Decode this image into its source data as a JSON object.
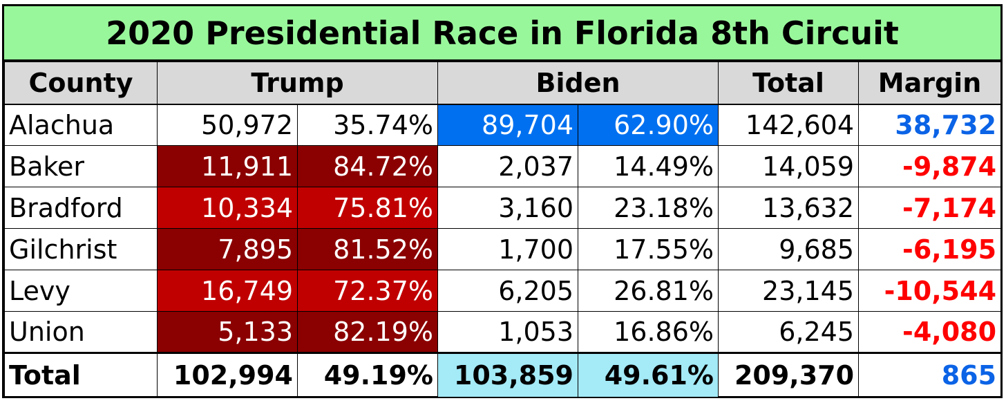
{
  "title": "2020 Presidential Race in Florida 8th Circuit",
  "headers": {
    "county": "County",
    "trump": "Trump",
    "biden": "Biden",
    "total": "Total",
    "margin": "Margin"
  },
  "rows": [
    {
      "county": "Alachua",
      "trump_votes": "50,972",
      "trump_pct": "35.74%",
      "biden_votes": "89,704",
      "biden_pct": "62.90%",
      "total": "142,604",
      "margin": "38,732"
    },
    {
      "county": "Baker",
      "trump_votes": "11,911",
      "trump_pct": "84.72%",
      "biden_votes": "2,037",
      "biden_pct": "14.49%",
      "total": "14,059",
      "margin": "-9,874"
    },
    {
      "county": "Bradford",
      "trump_votes": "10,334",
      "trump_pct": "75.81%",
      "biden_votes": "3,160",
      "biden_pct": "23.18%",
      "total": "13,632",
      "margin": "-7,174"
    },
    {
      "county": "Gilchrist",
      "trump_votes": "7,895",
      "trump_pct": "81.52%",
      "biden_votes": "1,700",
      "biden_pct": "17.55%",
      "total": "9,685",
      "margin": "-6,195"
    },
    {
      "county": "Levy",
      "trump_votes": "16,749",
      "trump_pct": "72.37%",
      "biden_votes": "6,205",
      "biden_pct": "26.81%",
      "total": "23,145",
      "margin": "-10,544"
    },
    {
      "county": "Union",
      "trump_votes": "5,133",
      "trump_pct": "82.19%",
      "biden_votes": "1,053",
      "biden_pct": "16.86%",
      "total": "6,245",
      "margin": "-4,080"
    }
  ],
  "totals": {
    "label": "Total",
    "trump_votes": "102,994",
    "trump_pct": "49.19%",
    "biden_votes": "103,859",
    "biden_pct": "49.61%",
    "total": "209,370",
    "margin": "865"
  },
  "colors": {
    "title_bg": "#99f79b",
    "header_bg": "#d9d9d9",
    "trump_dark": "#8b0000",
    "trump_mid": "#c00000",
    "biden_strong": "#0070f0",
    "biden_light": "#a4eaf7",
    "margin_dem": "#0b63e6",
    "margin_rep": "#ff0000"
  }
}
